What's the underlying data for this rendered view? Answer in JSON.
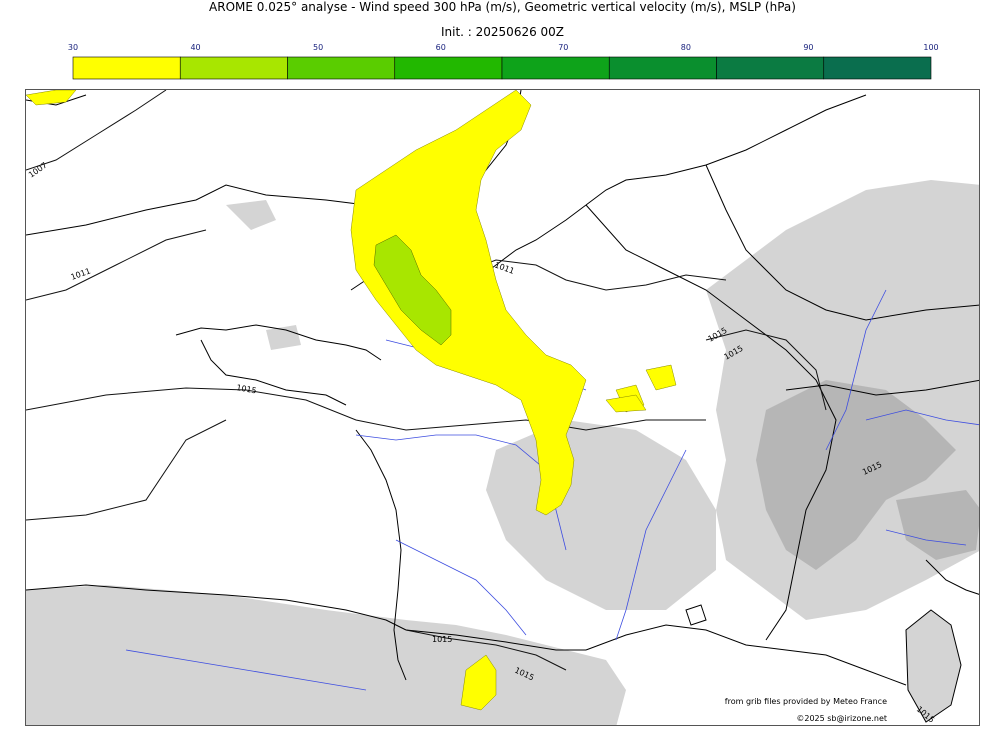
{
  "title": "AROME 0.025° analyse - Wind speed 300 hPa (m/s), Geometric vertical velocity (m/s), MSLP (hPa)",
  "subtitle": "Init. : 20250626 00Z",
  "colorbar": {
    "ticks": [
      "30",
      "40",
      "50",
      "60",
      "70",
      "80",
      "90",
      "100"
    ],
    "colors": [
      "#ffff00",
      "#a8e600",
      "#5acd00",
      "#22b800",
      "#0ea31a",
      "#0a8f2e",
      "#0b7b42",
      "#0a6e4e"
    ]
  },
  "isobars": [
    "1007",
    "1011",
    "1011",
    "1015",
    "1015",
    "1015",
    "1015",
    "1015",
    "1015",
    "1015"
  ],
  "credit": {
    "line1": "from grib files provided by Meteo France",
    "line2": "©2025 sb@irizone.net"
  },
  "colors": {
    "jet_yellow": "#ffff00",
    "jet_green": "#a8e600",
    "terrain_gray": "#d2d2d2",
    "rivers": "#3d4de0",
    "coast": "#000000"
  }
}
